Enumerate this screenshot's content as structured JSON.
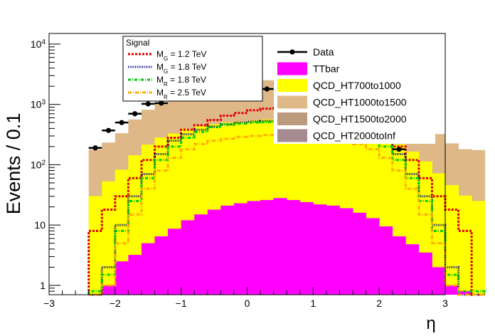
{
  "chart_data": {
    "type": "area",
    "title": "",
    "xlabel": "η",
    "ylabel": "Events / 0.1",
    "xlim": [
      -3,
      3
    ],
    "ylim": [
      0.7,
      15000
    ],
    "ylog": true,
    "grid": false,
    "x_bin_width": 0.2,
    "x_bin_start": -2.4,
    "x_ticks": [
      {
        "v": -3,
        "label": "−3"
      },
      {
        "v": -2,
        "label": "−2"
      },
      {
        "v": -1,
        "label": "−1"
      },
      {
        "v": 0,
        "label": "0"
      },
      {
        "v": 1,
        "label": "1"
      },
      {
        "v": 2,
        "label": "2"
      },
      {
        "v": 3,
        "label": "3"
      }
    ],
    "y_ticks": [
      {
        "v": 1,
        "base": "1",
        "exp": ""
      },
      {
        "v": 10,
        "base": "10",
        "exp": ""
      },
      {
        "v": 100,
        "base": "10",
        "exp": "2"
      },
      {
        "v": 1000,
        "base": "10",
        "exp": "3"
      },
      {
        "v": 10000,
        "base": "10",
        "exp": "4"
      }
    ],
    "stack": [
      {
        "name": "TTbar",
        "color": "#ff00ff",
        "values": [
          0.1,
          1.0,
          2.5,
          3.2,
          5,
          6.5,
          8.7,
          12,
          15,
          18,
          21,
          23,
          25,
          26,
          28,
          26,
          24,
          22,
          21,
          19,
          16,
          13,
          9.5,
          6.5,
          4.8,
          3.5,
          2.0,
          1.0,
          0.8,
          0.1
        ]
      },
      {
        "name": "QCD_HT700to1000",
        "color": "#ffff00",
        "values": [
          30,
          52,
          80,
          140,
          210,
          275,
          320,
          380,
          420,
          450,
          480,
          500,
          520,
          540,
          560,
          550,
          530,
          500,
          470,
          430,
          380,
          330,
          270,
          210,
          160,
          110,
          70,
          45,
          30,
          25
        ]
      },
      {
        "name": "QCD_HT1000to1500",
        "color": "#deb887",
        "values": [
          150,
          180,
          250,
          420,
          600,
          780,
          900,
          1000,
          1200,
          1400,
          1550,
          1700,
          1850,
          1950,
          2000,
          1950,
          1850,
          1700,
          1550,
          1400,
          1200,
          1000,
          900,
          780,
          600,
          420,
          250,
          180,
          150,
          150
        ]
      },
      {
        "name": "QCD_HT1500to2000",
        "color": "#bc9a7d",
        "values": []
      },
      {
        "name": "QCD_HT2000toInf",
        "color": "#a68a91",
        "values": []
      }
    ],
    "signals": [
      {
        "name": "M_G = 1.2 TeV",
        "sym": "M",
        "sub": "G",
        "rest": " = 1.2 TeV",
        "color": "#dd0000",
        "dash": "3,2",
        "values": [
          8,
          18,
          30,
          60,
          120,
          200,
          280,
          380,
          450,
          550,
          650,
          720,
          800,
          850,
          870,
          850,
          820,
          730,
          650,
          560,
          450,
          380,
          280,
          200,
          120,
          60,
          30,
          18,
          8,
          0.5
        ]
      },
      {
        "name": "M_G = 1.8 TeV",
        "sym": "M",
        "sub": "G",
        "rest": " = 1.8 TeV",
        "color": "#000080",
        "dash": "1,1.5",
        "values": [
          0.5,
          2,
          10,
          30,
          70,
          150,
          250,
          320,
          380,
          430,
          470,
          500,
          520,
          530,
          540,
          530,
          520,
          500,
          470,
          430,
          380,
          320,
          250,
          150,
          70,
          30,
          10,
          2,
          0.5,
          0.5
        ]
      },
      {
        "name": "M_R = 1.8 TeV",
        "sym": "M",
        "sub": "R",
        "rest": " = 1.8 TeV",
        "color": "#00cc00",
        "dash": "4,2,1,2",
        "values": [
          0.8,
          1.5,
          8,
          25,
          60,
          120,
          200,
          280,
          350,
          420,
          460,
          480,
          500,
          510,
          520,
          510,
          500,
          480,
          460,
          420,
          350,
          280,
          200,
          120,
          60,
          25,
          8,
          1.5,
          0.8,
          0.8
        ]
      },
      {
        "name": "M_R = 2.5 TeV",
        "sym": "M",
        "sub": "R",
        "rest": " = 2.5 TeV",
        "color": "#ffaa00",
        "dash": "5,2,1,2",
        "values": [
          0.5,
          1,
          5,
          15,
          40,
          80,
          130,
          180,
          220,
          250,
          270,
          290,
          300,
          310,
          320,
          310,
          300,
          290,
          270,
          250,
          220,
          180,
          130,
          80,
          40,
          15,
          5,
          1,
          0.5,
          0.5
        ]
      }
    ],
    "data": {
      "name": "Data",
      "color": "#000000",
      "x": [
        -2.3,
        -2.1,
        -1.9,
        -1.7,
        -1.5,
        -1.3,
        -1.1,
        -0.9,
        0.3,
        0.5,
        1.3,
        2.1,
        2.3
      ],
      "y": [
        190,
        370,
        500,
        700,
        1020,
        1050,
        1600,
        2000,
        1800,
        2200,
        2200,
        260,
        180
      ]
    },
    "data_legend": {
      "entries": [
        "Data",
        "TTbar",
        "QCD_HT700to1000",
        "QCD_HT1000to1500",
        "QCD_HT1500to2000",
        "QCD_HT2000toInf"
      ]
    },
    "signal_legend": {
      "header": "Signal"
    }
  }
}
